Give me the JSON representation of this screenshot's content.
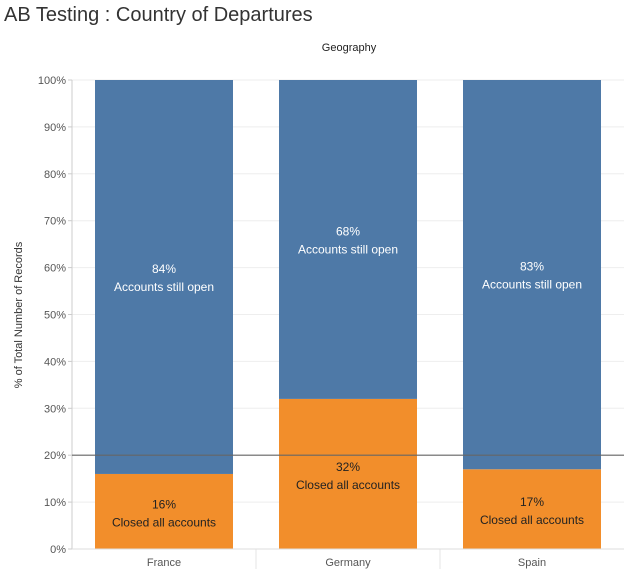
{
  "title": "AB Testing : Country of Departures",
  "chart_data": {
    "type": "bar",
    "stacked": true,
    "column_header": "Geography",
    "ylabel": "% of Total Number of Records",
    "ylim": [
      0,
      100
    ],
    "yticks": [
      "0%",
      "10%",
      "20%",
      "30%",
      "40%",
      "50%",
      "60%",
      "70%",
      "80%",
      "90%",
      "100%"
    ],
    "categories": [
      "France",
      "Germany",
      "Spain"
    ],
    "series": [
      {
        "name": "Closed all accounts",
        "color": "#f28e2b",
        "values": [
          16,
          32,
          17
        ]
      },
      {
        "name": "Accounts still open",
        "color": "#4e79a7",
        "values": [
          84,
          68,
          83
        ]
      }
    ],
    "data_labels": {
      "closed": [
        "16%",
        "32%",
        "17%"
      ],
      "open": [
        "84%",
        "68%",
        "83%"
      ]
    },
    "reference_line": {
      "value": 20
    },
    "grid": true
  }
}
